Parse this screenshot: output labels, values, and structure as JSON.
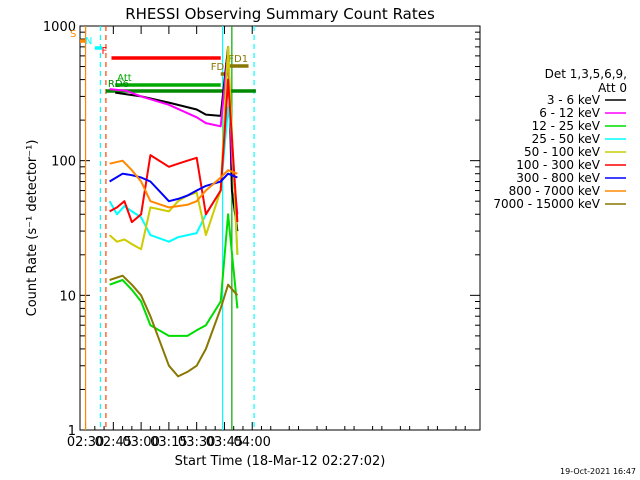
{
  "chart_data": {
    "type": "line",
    "title": "RHESSI Observing Summary Count Rates",
    "xlabel": "Start Time (18-Mar-12 02:27:02)",
    "ylabel": "Count Rate (s⁻¹ detector⁻¹)",
    "ylog": true,
    "ylim": [
      1,
      1000
    ],
    "xlim_min": [
      -3,
      213
    ],
    "xtick_labels": [
      "02:30",
      "02:45",
      "03:00",
      "03:15",
      "03:30",
      "03:45",
      "04:00"
    ],
    "xtick_values": [
      0,
      15,
      30,
      45,
      60,
      75,
      90
    ],
    "ytick_labels": [
      "1",
      "10",
      "100",
      "1000"
    ],
    "ytick_values": [
      1,
      10,
      100,
      1000
    ],
    "legend_header": [
      "Det 1,3,5,6,9,",
      "Att 0"
    ],
    "timestamp": "19-Oct-2021 16:47",
    "series": [
      {
        "name": "3 - 6 keV",
        "color": "#000000",
        "x": [
          16,
          30,
          45,
          60,
          65,
          73,
          77,
          79,
          82
        ],
        "y": [
          320,
          300,
          270,
          240,
          220,
          215,
          700,
          60,
          30
        ]
      },
      {
        "name": "6 - 12 keV",
        "color": "#ff00ff",
        "x": [
          13,
          22,
          30,
          45,
          60,
          65,
          73,
          77,
          79,
          82
        ],
        "y": [
          340,
          330,
          300,
          260,
          210,
          190,
          180,
          650,
          100,
          40
        ]
      },
      {
        "name": "12 - 25 keV",
        "color": "#00dd00",
        "x": [
          13,
          20,
          25,
          30,
          35,
          45,
          50,
          55,
          60,
          65,
          73,
          77,
          82
        ],
        "y": [
          12,
          13,
          11,
          9,
          6,
          5,
          5,
          5,
          5.5,
          6,
          9,
          40,
          8
        ]
      },
      {
        "name": "25 - 50 keV",
        "color": "#00ffff",
        "x": [
          13,
          17,
          21,
          25,
          30,
          35,
          45,
          50,
          55,
          60,
          65,
          73,
          77,
          79,
          82
        ],
        "y": [
          50,
          40,
          46,
          42,
          38,
          28,
          25,
          27,
          28,
          29,
          40,
          60,
          250,
          150,
          20
        ]
      },
      {
        "name": "50 - 100 keV",
        "color": "#cccc00",
        "x": [
          13,
          17,
          21,
          25,
          30,
          35,
          45,
          50,
          55,
          60,
          65,
          73,
          77,
          82
        ],
        "y": [
          28,
          25,
          26,
          24,
          22,
          45,
          42,
          50,
          55,
          58,
          28,
          60,
          700,
          20
        ]
      },
      {
        "name": "100 - 300 keV",
        "color": "#ff0000",
        "x": [
          13,
          17,
          21,
          25,
          30,
          35,
          45,
          50,
          55,
          60,
          65,
          73,
          77,
          82
        ],
        "y": [
          42,
          45,
          50,
          35,
          40,
          110,
          90,
          95,
          100,
          105,
          40,
          60,
          400,
          35
        ]
      },
      {
        "name": "300 - 800 keV",
        "color": "#0000ff",
        "x": [
          13,
          20,
          25,
          30,
          35,
          45,
          50,
          55,
          60,
          65,
          73,
          77,
          82
        ],
        "y": [
          70,
          80,
          78,
          75,
          70,
          50,
          52,
          55,
          60,
          65,
          70,
          80,
          75
        ]
      },
      {
        "name": "800 - 7000 keV",
        "color": "#ff8800",
        "x": [
          13,
          20,
          25,
          30,
          35,
          45,
          50,
          55,
          60,
          65,
          73,
          77,
          82
        ],
        "y": [
          95,
          100,
          85,
          70,
          50,
          45,
          46,
          47,
          50,
          60,
          75,
          85,
          80
        ]
      },
      {
        "name": "7000 - 15000 keV",
        "color": "#887700",
        "x": [
          13,
          20,
          25,
          30,
          35,
          45,
          50,
          55,
          60,
          65,
          73,
          77,
          82
        ],
        "y": [
          13,
          14,
          12,
          10,
          7,
          3,
          2.5,
          2.7,
          3,
          4,
          8,
          12,
          10
        ]
      }
    ],
    "flag_bars": [
      {
        "label": "S",
        "color": "#ff8800",
        "x0": -3,
        "x1": 0,
        "level": 0
      },
      {
        "label": "N",
        "color": "#00ffff",
        "x0": 5,
        "x1": 9,
        "level": 1
      },
      {
        "label": "F",
        "color": "#ff0000",
        "x0": 14,
        "x1": 73,
        "level": 2
      },
      {
        "label": "FD1",
        "color": "#887700",
        "x0": 76,
        "x1": 88,
        "level": 3
      },
      {
        "label": "FD2",
        "color": "#887700",
        "x0": 73,
        "x1": 78,
        "level": 4
      },
      {
        "label": "Att",
        "color": "#00aa00",
        "x0": 16,
        "x1": 73,
        "level": 5
      },
      {
        "label": "RD6",
        "color": "#008800",
        "x0": 11,
        "x1": 92,
        "level": 6
      }
    ],
    "vlines": [
      {
        "x": 0,
        "color": "#ff8800",
        "style": "solid"
      },
      {
        "x": 8,
        "color": "#00ffff",
        "style": "dashed"
      },
      {
        "x": 11,
        "color": "#ff4400",
        "style": "dashed"
      },
      {
        "x": 74,
        "color": "#00ffff",
        "style": "solid"
      },
      {
        "x": 79,
        "color": "#00aa00",
        "style": "solid"
      },
      {
        "x": 91,
        "color": "#00ffff",
        "style": "dashed"
      }
    ]
  }
}
